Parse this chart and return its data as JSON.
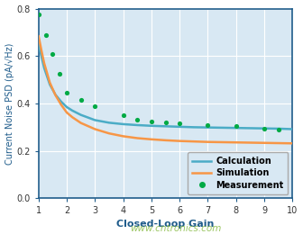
{
  "title": "",
  "xlabel": "Closed-Loop Gain",
  "ylabel": "Current Noise PSD (pA/√Hz)",
  "xlim": [
    1,
    10
  ],
  "ylim": [
    0,
    0.8
  ],
  "yticks": [
    0,
    0.2,
    0.4,
    0.6,
    0.8
  ],
  "xticks": [
    1,
    2,
    3,
    4,
    5,
    6,
    7,
    8,
    9,
    10
  ],
  "calc_color": "#4BACC6",
  "sim_color": "#F79646",
  "meas_color": "#00AA44",
  "plot_bg_color": "#D8E8F3",
  "fig_bg_color": "#FFFFFF",
  "axis_color": "#1F5C8B",
  "tick_color": "#333333",
  "watermark": "www.cntronics.com",
  "watermark_color": "#88BB44",
  "calc_x": [
    1.0,
    1.1,
    1.2,
    1.4,
    1.6,
    1.8,
    2.0,
    2.2,
    2.5,
    3.0,
    3.5,
    4.0,
    4.5,
    5.0,
    5.5,
    6.0,
    6.5,
    7.0,
    7.5,
    8.0,
    8.5,
    9.0,
    9.5,
    10.0
  ],
  "calc_y": [
    0.655,
    0.6,
    0.55,
    0.48,
    0.437,
    0.408,
    0.385,
    0.37,
    0.352,
    0.33,
    0.319,
    0.313,
    0.309,
    0.306,
    0.304,
    0.302,
    0.3,
    0.299,
    0.298,
    0.297,
    0.296,
    0.295,
    0.294,
    0.292
  ],
  "sim_x": [
    1.0,
    1.1,
    1.2,
    1.4,
    1.6,
    1.8,
    2.0,
    2.2,
    2.5,
    3.0,
    3.5,
    4.0,
    4.5,
    5.0,
    5.5,
    6.0,
    6.5,
    7.0,
    7.5,
    8.0,
    8.5,
    9.0,
    9.5,
    10.0
  ],
  "sim_y": [
    0.685,
    0.625,
    0.57,
    0.488,
    0.435,
    0.395,
    0.362,
    0.342,
    0.318,
    0.292,
    0.274,
    0.262,
    0.254,
    0.249,
    0.245,
    0.242,
    0.24,
    0.238,
    0.237,
    0.236,
    0.235,
    0.234,
    0.233,
    0.232
  ],
  "meas_x": [
    1.0,
    1.25,
    1.5,
    1.75,
    2.0,
    2.5,
    3.0,
    4.0,
    4.5,
    5.0,
    5.5,
    6.0,
    7.0,
    8.0,
    9.0,
    9.5
  ],
  "meas_y": [
    0.775,
    0.69,
    0.61,
    0.525,
    0.445,
    0.415,
    0.39,
    0.35,
    0.333,
    0.325,
    0.32,
    0.315,
    0.31,
    0.305,
    0.295,
    0.29
  ],
  "legend_labels": [
    "Calculation",
    "Simulation",
    "Measurement"
  ],
  "legend_fontsize": 7,
  "xlabel_fontsize": 8,
  "ylabel_fontsize": 7,
  "tick_fontsize": 7
}
